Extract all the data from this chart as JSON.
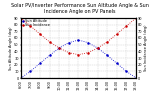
{
  "title": "Solar PV/Inverter Performance Sun Altitude Angle & Sun Incidence Angle on PV Panels",
  "legend_labels": [
    "Sun Altitude",
    "Sun Incidence"
  ],
  "line_colors": [
    "#0000cc",
    "#cc0000"
  ],
  "x_values": [
    6,
    7,
    8,
    9,
    10,
    11,
    12,
    13,
    14,
    15,
    16,
    17,
    18
  ],
  "altitude_values": [
    0,
    10,
    22,
    34,
    45,
    53,
    57,
    53,
    45,
    34,
    22,
    10,
    0
  ],
  "incidence_values": [
    90,
    78,
    66,
    54,
    45,
    38,
    35,
    38,
    45,
    54,
    66,
    78,
    90
  ],
  "xlim": [
    6,
    18
  ],
  "ylim_left": [
    0,
    90
  ],
  "ylim_right": [
    0,
    90
  ],
  "ylabel_left": "Sun Altitude Angle (deg)",
  "ylabel_right": "Sun Incidence Angle (deg)",
  "title_fontsize": 3.5,
  "label_fontsize": 2.5,
  "tick_fontsize": 2.5,
  "legend_fontsize": 2.5,
  "background_color": "#ffffff",
  "grid_color": "#bbbbbb",
  "left_yticks": [
    0,
    10,
    20,
    30,
    40,
    50,
    60,
    70,
    80,
    90
  ],
  "right_yticks": [
    0,
    10,
    20,
    30,
    40,
    50,
    60,
    70,
    80,
    90
  ],
  "xtick_labels": [
    "6:00",
    "7:00",
    "8:00",
    "9:00",
    "10:00",
    "11:00",
    "12:00",
    "13:00",
    "14:00",
    "15:00",
    "16:00",
    "17:00",
    "18:00"
  ]
}
